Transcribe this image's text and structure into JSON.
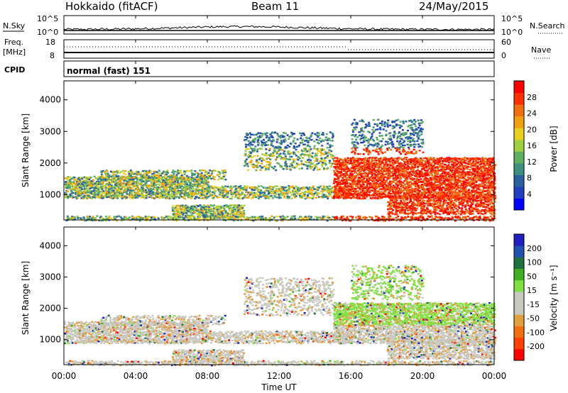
{
  "header": {
    "station": "Hokkaido (fitACF)",
    "beam": "Beam 11",
    "date": "24/May/2015"
  },
  "colors": {
    "power_scale": [
      "#0000ff",
      "#1f3fbf",
      "#2b5fa0",
      "#3f8f7f",
      "#5faf5f",
      "#a0d040",
      "#e8d020",
      "#f0a010",
      "#f07010",
      "#ff3000",
      "#ff0000"
    ],
    "velocity_scale": [
      "#2020c0",
      "#2050b0",
      "#207040",
      "#40b020",
      "#80e040",
      "#c8c8c0",
      "#c8c8c0",
      "#e0a040",
      "#f07010",
      "#ff4000",
      "#ff0000"
    ]
  },
  "chart_data": [
    {
      "type": "line",
      "panel": "noise",
      "left_label": "N.Sky",
      "right_label": "N.Search",
      "left_ticks": [
        "10^5",
        "10^0"
      ],
      "right_ticks": [
        "10^5",
        "10^0"
      ]
    },
    {
      "type": "line",
      "panel": "frequency",
      "left_label_1": "Freq.",
      "left_label_2": "[MHz]",
      "right_label": "Nave",
      "left_ticks": [
        "18",
        "8"
      ],
      "right_ticks": [
        "60",
        "0"
      ]
    },
    {
      "type": "table",
      "panel": "cpid",
      "left_label": "CPID",
      "text": "normal (fast) 151"
    },
    {
      "type": "heatmap",
      "panel": "power",
      "ylabel": "Slant Range [km]",
      "yticks": [
        "1000",
        "2000",
        "3000",
        "4000"
      ],
      "ylim": [
        200,
        4600
      ],
      "xlim": [
        0,
        24
      ],
      "colorbar_label": "Power [dB]",
      "colorbar_ticks": [
        "4",
        "8",
        "12",
        "16",
        "20",
        "24",
        "28"
      ],
      "colorbar_range": [
        0,
        30
      ]
    },
    {
      "type": "heatmap",
      "panel": "velocity",
      "ylabel": "Slant Range [km]",
      "yticks": [
        "1000",
        "2000",
        "3000",
        "4000"
      ],
      "ylim": [
        200,
        4600
      ],
      "xlim": [
        0,
        24
      ],
      "colorbar_label": "Velocity [m s⁻¹]",
      "colorbar_ticks": [
        "200",
        "100",
        "50",
        "15",
        "-15",
        "-50",
        "-100",
        "-200"
      ],
      "colorbar_range": [
        -250,
        250
      ]
    }
  ],
  "xaxis": {
    "label": "Time UT",
    "ticks": [
      "00:00",
      "04:00",
      "08:00",
      "12:00",
      "16:00",
      "20:00",
      "00:00"
    ]
  }
}
